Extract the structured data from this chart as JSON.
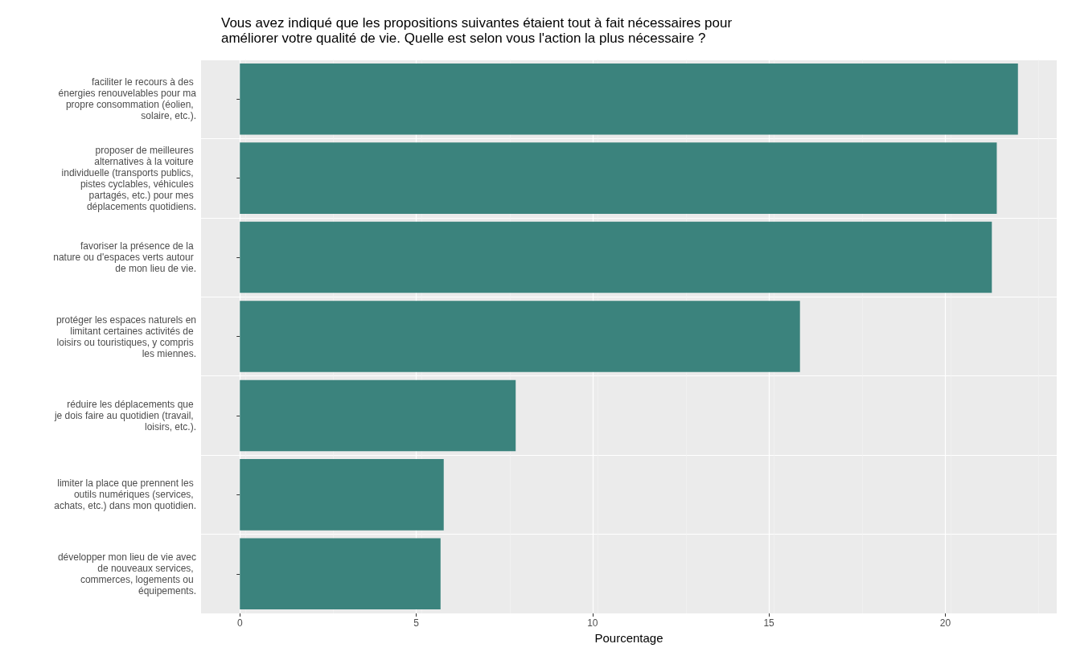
{
  "chart_data": {
    "type": "bar",
    "orientation": "horizontal",
    "title": "Vous avez indiqué que les propositions suivantes étaient tout à fait nécessaires pour améliorer votre qualité de vie. Quelle est selon vous l'action la plus nécessaire ?",
    "xlabel": "Pourcentage",
    "categories": [
      "faciliter le recours à des énergies renouvelables pour ma propre consommation (éolien, solaire, etc.).",
      "proposer de meilleures alternatives à la voiture individuelle (transports publics, pistes cyclables, véhicules partagés, etc.) pour mes déplacements quotidiens.",
      "favoriser la présence de la nature ou d'espaces verts autour de mon lieu de vie.",
      "protéger les espaces naturels en limitant certaines activités de loisirs ou touristiques, y compris les miennes.",
      "réduire les déplacements que je dois faire au quotidien (travail, loisirs, etc.).",
      "limiter la place que prennent les outils numériques (services, achats, etc.) dans mon quotidien.",
      "développer mon lieu de vie avec de nouveaux services, commerces, logements ou équipements."
    ],
    "values": [
      22.06,
      21.46,
      21.32,
      15.88,
      7.82,
      5.78,
      5.69
    ],
    "color": "#3b837d",
    "xlim": [
      -1.1,
      23.16
    ],
    "xticks": [
      0,
      5,
      10,
      15,
      20
    ],
    "grid": true
  }
}
